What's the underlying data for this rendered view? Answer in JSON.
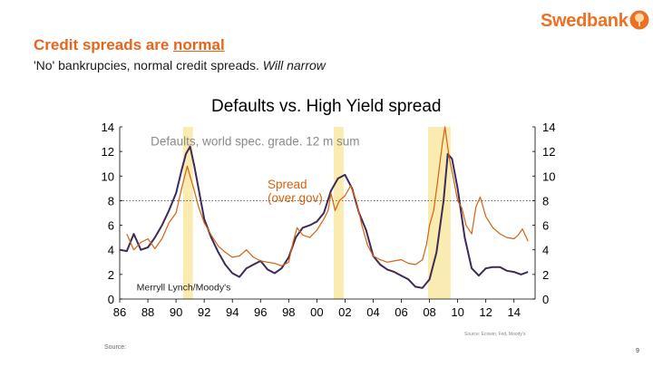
{
  "brand": {
    "name": "Swedbank",
    "color": "#ee7023",
    "logo_icon": "oak-tree-icon"
  },
  "slide": {
    "title_main": "Credit spreads are ",
    "title_underlined": "normal",
    "subtitle_main": "'No' bankrupcies, normal credit spreads. ",
    "subtitle_italic": "Will narrow",
    "source_label": "Source:",
    "source_small": "Source: Ecowin, Fed, Moody's",
    "page_number": "9"
  },
  "colors": {
    "defaults": "#3d2a55",
    "spread": "#d6620f",
    "recession": "#faecb0",
    "title": "#e8641b"
  },
  "chart_data": {
    "type": "line",
    "title": "Defaults vs. High Yield spread",
    "xlabel": "",
    "ylabel": "",
    "xlim": [
      1986,
      2015.5
    ],
    "ylim": [
      0,
      14
    ],
    "yticks": [
      0,
      2,
      4,
      6,
      8,
      10,
      12,
      14
    ],
    "ytick_labels": [
      "0",
      "2",
      "4",
      "6",
      "8",
      "10",
      "12",
      "14"
    ],
    "xticks": [
      1986,
      1988,
      1990,
      1992,
      1994,
      1996,
      1998,
      2000,
      2002,
      2004,
      2006,
      2008,
      2010,
      2012,
      2014
    ],
    "xtick_labels": [
      "86",
      "88",
      "90",
      "92",
      "94",
      "96",
      "98",
      "00",
      "02",
      "04",
      "06",
      "08",
      "10",
      "12",
      "14"
    ],
    "reference_line": 8,
    "recession_bands": [
      [
        1990.5,
        1991.2
      ],
      [
        2001.2,
        2001.9
      ],
      [
        2007.9,
        2009.5
      ]
    ],
    "annotations": [
      {
        "text": "Defaults, world spec. grade. 12 m sum",
        "color": "#8a8a8a",
        "at": [
          1988.2,
          12.5
        ]
      },
      {
        "text": "Spread",
        "color": "#d6620f",
        "at": [
          1996.5,
          9.0
        ]
      },
      {
        "text": "(over gov)",
        "color": "#d6620f",
        "at": [
          1996.5,
          7.9
        ]
      },
      {
        "text": "Merryll Lynch/Moody's",
        "color": "#222222",
        "at": [
          1987.2,
          0.7
        ]
      }
    ],
    "series": [
      {
        "name": "Defaults, world spec. grade. 12 m sum",
        "color": "#3d2a55",
        "x": [
          1986.0,
          1986.5,
          1987.0,
          1987.5,
          1988.0,
          1988.5,
          1989.0,
          1989.5,
          1990.0,
          1990.4,
          1990.7,
          1991.0,
          1991.3,
          1991.6,
          1992.0,
          1992.5,
          1993.0,
          1993.5,
          1994.0,
          1994.5,
          1995.0,
          1995.5,
          1996.0,
          1996.5,
          1997.0,
          1997.5,
          1998.0,
          1998.5,
          1999.0,
          1999.5,
          2000.0,
          2000.5,
          2001.0,
          2001.5,
          2002.0,
          2002.5,
          2003.0,
          2003.5,
          2004.0,
          2004.5,
          2005.0,
          2005.5,
          2006.0,
          2006.5,
          2007.0,
          2007.5,
          2008.0,
          2008.5,
          2009.0,
          2009.3,
          2009.6,
          2010.0,
          2010.5,
          2011.0,
          2011.5,
          2012.0,
          2012.5,
          2013.0,
          2013.5,
          2014.0,
          2014.5,
          2015.0
        ],
        "values": [
          4.0,
          3.9,
          5.3,
          4.0,
          4.2,
          5.0,
          6.0,
          7.2,
          8.6,
          10.5,
          11.8,
          12.4,
          10.8,
          9.0,
          6.5,
          5.0,
          3.8,
          2.8,
          2.1,
          1.8,
          2.5,
          2.8,
          3.1,
          2.4,
          2.1,
          2.5,
          3.4,
          5.0,
          5.8,
          6.0,
          6.3,
          7.0,
          8.8,
          9.8,
          10.1,
          9.0,
          7.0,
          5.6,
          3.5,
          2.8,
          2.4,
          2.2,
          1.9,
          1.6,
          1.0,
          0.9,
          1.6,
          3.8,
          8.0,
          11.8,
          11.4,
          9.0,
          5.0,
          2.5,
          1.9,
          2.5,
          2.6,
          2.6,
          2.3,
          2.2,
          2.0,
          2.2
        ]
      },
      {
        "name": "Spread (over gov)",
        "color": "#d6620f",
        "x": [
          1986.5,
          1987.0,
          1987.5,
          1988.0,
          1988.5,
          1989.0,
          1989.5,
          1990.0,
          1990.4,
          1990.8,
          1991.0,
          1991.3,
          1991.6,
          1992.0,
          1992.5,
          1993.0,
          1993.5,
          1994.0,
          1994.5,
          1995.0,
          1995.5,
          1996.0,
          1996.5,
          1997.0,
          1997.5,
          1998.0,
          1998.3,
          1998.6,
          1999.0,
          1999.5,
          2000.0,
          2000.5,
          2000.8,
          2001.0,
          2001.3,
          2001.6,
          2002.0,
          2002.4,
          2002.8,
          2003.2,
          2003.6,
          2004.0,
          2004.5,
          2005.0,
          2005.5,
          2006.0,
          2006.5,
          2007.0,
          2007.5,
          2007.8,
          2008.0,
          2008.3,
          2008.6,
          2008.9,
          2009.1,
          2009.4,
          2009.7,
          2010.0,
          2010.3,
          2010.6,
          2011.0,
          2011.3,
          2011.6,
          2012.0,
          2012.5,
          2013.0,
          2013.5,
          2014.0,
          2014.3,
          2014.6,
          2015.0
        ],
        "values": [
          5.3,
          4.0,
          4.6,
          4.9,
          4.1,
          4.9,
          6.2,
          7.0,
          9.0,
          10.8,
          10.0,
          8.8,
          7.5,
          6.2,
          5.2,
          4.3,
          3.8,
          3.4,
          3.5,
          4.0,
          3.4,
          3.1,
          3.0,
          2.9,
          2.7,
          3.0,
          4.6,
          5.8,
          5.2,
          5.0,
          5.6,
          6.5,
          7.2,
          8.6,
          7.2,
          8.0,
          8.4,
          9.2,
          8.0,
          6.0,
          4.4,
          3.5,
          3.2,
          3.0,
          3.1,
          3.2,
          2.9,
          2.8,
          3.2,
          4.5,
          6.0,
          7.2,
          9.8,
          12.5,
          14.0,
          11.5,
          9.8,
          8.0,
          7.4,
          6.0,
          5.3,
          7.5,
          8.3,
          6.7,
          5.8,
          5.3,
          5.0,
          4.9,
          5.2,
          5.7,
          4.7
        ]
      }
    ]
  }
}
